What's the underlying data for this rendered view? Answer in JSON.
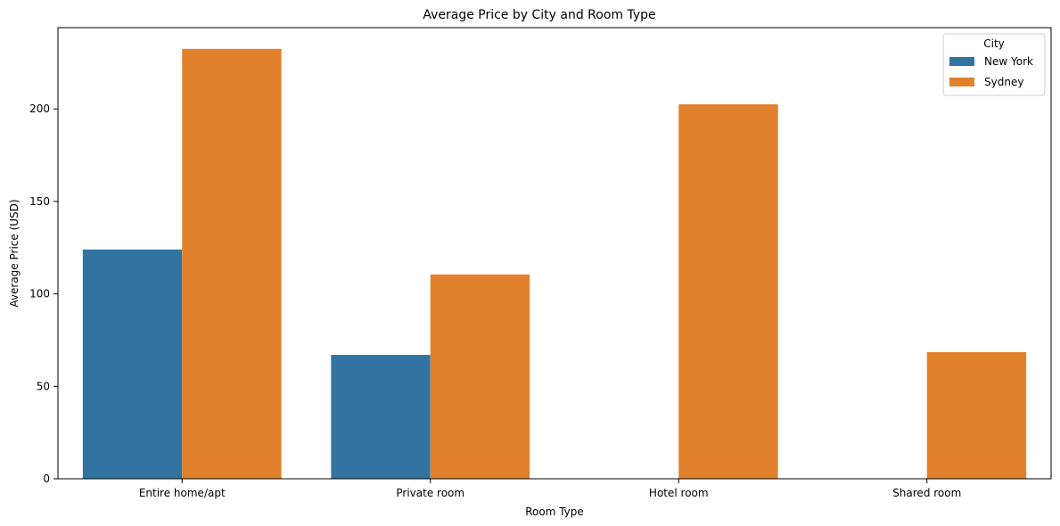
{
  "chart_data": {
    "type": "bar",
    "title": "Average Price by City and Room Type",
    "xlabel": "Room Type",
    "ylabel": "Average Price (USD)",
    "categories": [
      "Entire home/apt",
      "Private room",
      "Hotel room",
      "Shared room"
    ],
    "series": [
      {
        "name": "New York",
        "color": "#3274a1",
        "values": [
          124,
          67,
          null,
          null
        ]
      },
      {
        "name": "Sydney",
        "color": "#e1812c",
        "values": [
          232.5,
          110.5,
          202.5,
          68.5
        ]
      }
    ],
    "ylim": [
      0,
      244
    ],
    "yticks": [
      0,
      50,
      100,
      150,
      200
    ],
    "grid": false,
    "legend": {
      "title": "City",
      "placement": "top-right"
    }
  }
}
